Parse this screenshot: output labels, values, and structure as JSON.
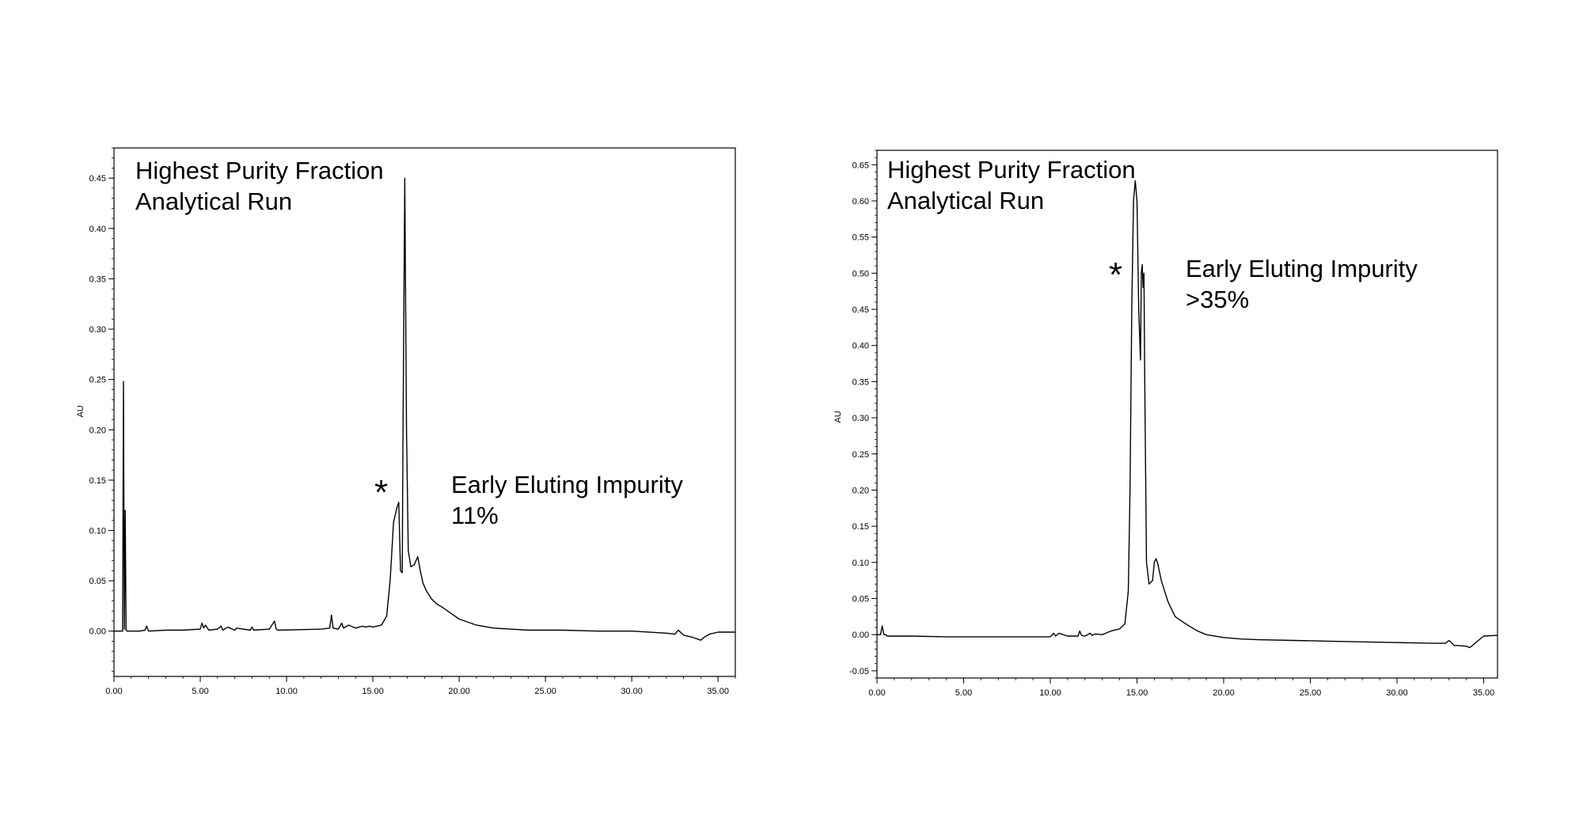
{
  "chart_data": [
    {
      "type": "line",
      "title_lines": [
        "Highest Purity Fraction",
        "Analytical Run"
      ],
      "ylabel": "AU",
      "xlabel": "",
      "xlim": [
        0,
        36
      ],
      "ylim": [
        -0.045,
        0.48
      ],
      "xticks": [
        0,
        5,
        10,
        15,
        20,
        25,
        30,
        35
      ],
      "xtick_labels": [
        "0.00",
        "5.00",
        "10.00",
        "15.00",
        "20.00",
        "25.00",
        "30.00",
        "35.00"
      ],
      "yticks": [
        0,
        0.05,
        0.1,
        0.15,
        0.2,
        0.25,
        0.3,
        0.35,
        0.4,
        0.45
      ],
      "ytick_labels": [
        "0.00",
        "0.05",
        "0.10",
        "0.15",
        "0.20",
        "0.25",
        "0.30",
        "0.35",
        "0.40",
        "0.45"
      ],
      "annotation_lines": [
        "Early Eluting Impurity",
        "11%"
      ],
      "marker": "*",
      "series": [
        {
          "x": [
            0,
            0.5,
            0.55,
            0.6,
            0.65,
            0.7,
            0.75,
            1.0,
            1.5,
            1.8,
            1.9,
            2.0,
            3.0,
            4.0,
            5.0,
            5.1,
            5.2,
            5.3,
            5.5,
            6.0,
            6.2,
            6.3,
            6.6,
            7.0,
            7.1,
            7.9,
            8.0,
            8.1,
            9.0,
            9.3,
            9.4,
            9.5,
            12.0,
            12.5,
            12.6,
            12.7,
            13.0,
            13.2,
            13.3,
            13.6,
            14.0,
            14.4,
            14.6,
            14.8,
            15.0,
            15.5,
            15.8,
            16.0,
            16.2,
            16.4,
            16.5,
            16.6,
            16.7,
            16.75,
            16.85,
            16.95,
            17.05,
            17.2,
            17.4,
            17.6,
            17.75,
            17.9,
            18.1,
            18.4,
            18.7,
            19.0,
            19.5,
            20.0,
            21.0,
            22.0,
            23.0,
            24.0,
            25.0,
            26.0,
            28.0,
            30.0,
            32.0,
            32.5,
            32.7,
            33.0,
            33.5,
            34.0,
            34.2,
            34.5,
            35.0,
            36.0
          ],
          "y": [
            0,
            0,
            0.248,
            0.002,
            0.12,
            0.001,
            0,
            0,
            0,
            0.001,
            0.005,
            0,
            0.001,
            0.001,
            0.002,
            0.008,
            0.003,
            0.006,
            0.001,
            0.002,
            0.005,
            0.001,
            0.004,
            0.001,
            0.003,
            0.001,
            0.004,
            0.001,
            0.002,
            0.01,
            0.002,
            0.001,
            0.002,
            0.003,
            0.016,
            0.003,
            0.002,
            0.008,
            0.003,
            0.006,
            0.003,
            0.005,
            0.004,
            0.005,
            0.004,
            0.006,
            0.015,
            0.05,
            0.108,
            0.123,
            0.128,
            0.06,
            0.058,
            0.2,
            0.45,
            0.2,
            0.08,
            0.064,
            0.066,
            0.074,
            0.06,
            0.048,
            0.04,
            0.032,
            0.027,
            0.024,
            0.018,
            0.012,
            0.006,
            0.003,
            0.002,
            0.001,
            0.001,
            0.001,
            0,
            0,
            -0.002,
            -0.003,
            0.001,
            -0.004,
            -0.006,
            -0.009,
            -0.006,
            -0.003,
            -0.001,
            -0.001
          ]
        }
      ]
    },
    {
      "type": "line",
      "title_lines": [
        "Highest Purity Fraction",
        "Analytical Run"
      ],
      "ylabel": "AU",
      "xlabel": "",
      "xlim": [
        0,
        35.8
      ],
      "ylim": [
        -0.06,
        0.67
      ],
      "xticks": [
        0,
        5,
        10,
        15,
        20,
        25,
        30,
        35
      ],
      "xtick_labels": [
        "0.00",
        "5.00",
        "10.00",
        "15.00",
        "20.00",
        "25.00",
        "30.00",
        "35.00"
      ],
      "yticks": [
        -0.05,
        0,
        0.05,
        0.1,
        0.15,
        0.2,
        0.25,
        0.3,
        0.35,
        0.4,
        0.45,
        0.5,
        0.55,
        0.6,
        0.65
      ],
      "ytick_labels": [
        "-0.05",
        "0.00",
        "0.05",
        "0.10",
        "0.15",
        "0.20",
        "0.25",
        "0.30",
        "0.35",
        "0.40",
        "0.45",
        "0.50",
        "0.55",
        "0.60",
        "0.65"
      ],
      "annotation_lines": [
        "Early Eluting Impurity",
        ">35%"
      ],
      "marker": "*",
      "series": [
        {
          "x": [
            0,
            0.2,
            0.3,
            0.4,
            0.5,
            0.6,
            1.0,
            2.0,
            4.0,
            6.0,
            8.0,
            10.0,
            10.2,
            10.3,
            10.5,
            11.0,
            11.6,
            11.7,
            11.8,
            12.0,
            12.3,
            12.4,
            12.6,
            13.0,
            13.5,
            14.0,
            14.3,
            14.5,
            14.6,
            14.7,
            14.8,
            14.9,
            15.0,
            15.1,
            15.2,
            15.25,
            15.3,
            15.35,
            15.4,
            15.45,
            15.55,
            15.7,
            15.9,
            16.0,
            16.1,
            16.2,
            16.4,
            16.6,
            16.8,
            17.0,
            17.2,
            17.5,
            18.0,
            18.5,
            19.0,
            20.0,
            21.0,
            22.0,
            24.0,
            26.0,
            28.0,
            30.0,
            32.0,
            32.8,
            33.0,
            33.3,
            33.5,
            34.0,
            34.2,
            34.5,
            35.0,
            35.8
          ],
          "y": [
            0,
            0,
            0.012,
            0,
            0,
            -0.002,
            -0.002,
            -0.002,
            -0.003,
            -0.003,
            -0.003,
            -0.003,
            0.002,
            -0.002,
            0.002,
            -0.002,
            -0.002,
            0.005,
            -0.001,
            -0.002,
            0.002,
            -0.001,
            0.001,
            0,
            0.005,
            0.008,
            0.015,
            0.06,
            0.2,
            0.45,
            0.6,
            0.628,
            0.6,
            0.45,
            0.38,
            0.5,
            0.512,
            0.48,
            0.5,
            0.35,
            0.1,
            0.07,
            0.075,
            0.1,
            0.105,
            0.098,
            0.075,
            0.06,
            0.045,
            0.035,
            0.025,
            0.02,
            0.012,
            0.005,
            0,
            -0.004,
            -0.006,
            -0.007,
            -0.008,
            -0.009,
            -0.01,
            -0.011,
            -0.012,
            -0.012,
            -0.008,
            -0.015,
            -0.015,
            -0.016,
            -0.018,
            -0.012,
            -0.002,
            -0.001
          ]
        }
      ]
    }
  ]
}
